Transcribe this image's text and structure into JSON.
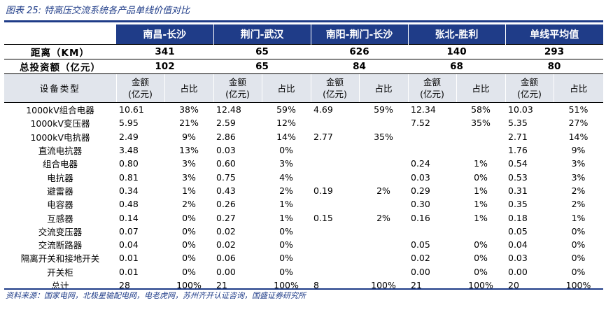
{
  "caption": "图表 25:  特高压交流系统各产品单线价值对比",
  "headers": {
    "projects": [
      "南昌-长沙",
      "荆门-武汉",
      "南阳-荆门-长沙",
      "张北-胜利",
      "单线平均值"
    ]
  },
  "summary": [
    {
      "label": "距离（KM）",
      "values": [
        "341",
        "65",
        "626",
        "140",
        "293"
      ]
    },
    {
      "label": "总投资额（亿元）",
      "values": [
        "102",
        "65",
        "84",
        "68",
        "80"
      ]
    }
  ],
  "subheader": {
    "label": "设备类型",
    "amount": "金额（亿元）",
    "amount_line1": "金额",
    "amount_line2": "(亿元)",
    "share": "占比"
  },
  "rows": [
    {
      "label": "1000kV组合电器",
      "cells": [
        "10.61",
        "38%",
        "12.48",
        "59%",
        "4.69",
        "59%",
        "12.34",
        "58%",
        "10.03",
        "51%"
      ]
    },
    {
      "label": "1000kV变压器",
      "cells": [
        "5.95",
        "21%",
        "2.59",
        "12%",
        "",
        "",
        "7.52",
        "35%",
        "5.35",
        "27%"
      ]
    },
    {
      "label": "1000kV电抗器",
      "cells": [
        "2.49",
        "9%",
        "2.86",
        "14%",
        "2.77",
        "35%",
        "",
        "",
        "2.71",
        "14%"
      ]
    },
    {
      "label": "直流电抗器",
      "cells": [
        "3.48",
        "13%",
        "0.03",
        "0%",
        "",
        "",
        "",
        "",
        "1.76",
        "9%"
      ]
    },
    {
      "label": "组合电器",
      "cells": [
        "0.80",
        "3%",
        "0.60",
        "3%",
        "",
        "",
        "0.24",
        "1%",
        "0.54",
        "3%"
      ]
    },
    {
      "label": "电抗器",
      "cells": [
        "0.81",
        "3%",
        "0.75",
        "4%",
        "",
        "",
        "0.03",
        "0%",
        "0.53",
        "3%"
      ]
    },
    {
      "label": "避雷器",
      "cells": [
        "0.34",
        "1%",
        "0.43",
        "2%",
        "0.19",
        "2%",
        "0.29",
        "1%",
        "0.31",
        "2%"
      ]
    },
    {
      "label": "电容器",
      "cells": [
        "0.48",
        "2%",
        "0.26",
        "1%",
        "",
        "",
        "0.30",
        "1%",
        "0.35",
        "2%"
      ]
    },
    {
      "label": "互感器",
      "cells": [
        "0.14",
        "0%",
        "0.27",
        "1%",
        "0.15",
        "2%",
        "0.16",
        "1%",
        "0.18",
        "1%"
      ]
    },
    {
      "label": "交流变压器",
      "cells": [
        "0.07",
        "0%",
        "0.02",
        "0%",
        "",
        "",
        "",
        "",
        "0.05",
        "0%"
      ]
    },
    {
      "label": "交流断路器",
      "cells": [
        "0.04",
        "0%",
        "0.02",
        "0%",
        "",
        "",
        "0.05",
        "0%",
        "0.04",
        "0%"
      ]
    },
    {
      "label": "隔离开关和接地开关",
      "cells": [
        "0.01",
        "0%",
        "0.06",
        "0%",
        "",
        "",
        "0.02",
        "0%",
        "0.03",
        "0%"
      ]
    },
    {
      "label": "开关柜",
      "cells": [
        "0.01",
        "0%",
        "0.00",
        "0%",
        "",
        "",
        "0.00",
        "0%",
        "0.00",
        "0%"
      ]
    },
    {
      "label": "总计",
      "cells": [
        "28",
        "100%",
        "21",
        "100%",
        "8",
        "100%",
        "21",
        "100%",
        "20",
        "100%"
      ]
    }
  ],
  "source": "资料来源：国家电网，北极星输配电网，电老虎网，苏州齐开认证咨询，国盛证券研究所"
}
